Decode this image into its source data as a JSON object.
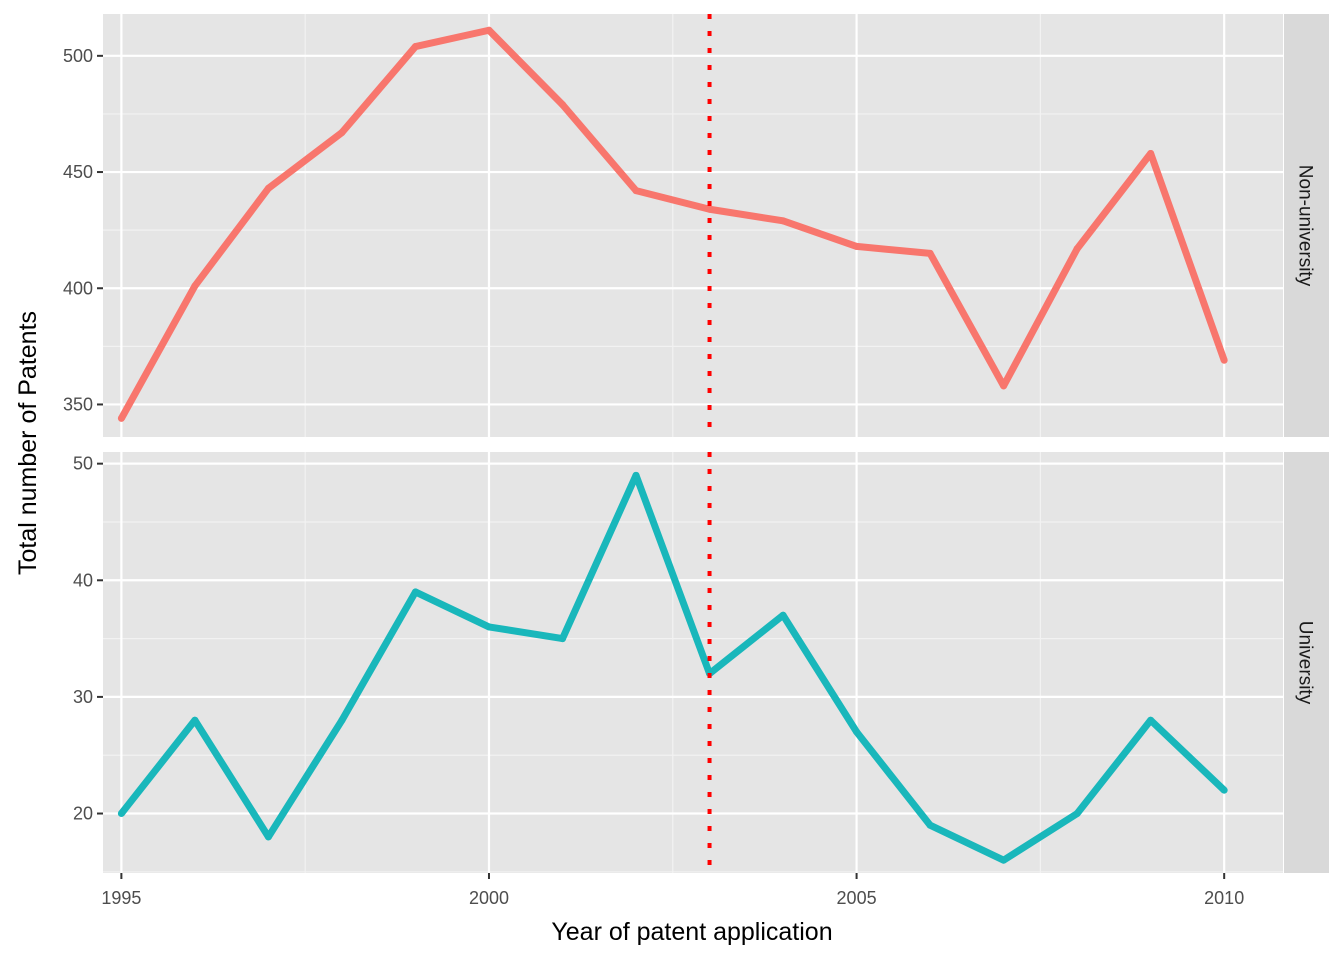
{
  "chart_data": {
    "type": "line",
    "xlabel": "Year of patent application",
    "ylabel": "Total number of Patents",
    "x_ticks": [
      "1995",
      "2000",
      "2005",
      "2010"
    ],
    "xlim": [
      1994.75,
      2010.8
    ],
    "vline": {
      "x": 2003,
      "style": "dotted",
      "color": "#ff0000"
    },
    "grid": true,
    "legend": "none",
    "panels": [
      {
        "strip": "Non-university",
        "color": "#f8766d",
        "ylim": [
          336,
          518
        ],
        "y_ticks": [
          "350",
          "400",
          "450",
          "500"
        ],
        "series": [
          {
            "x": [
              1995,
              1996,
              1997,
              1998,
              1999,
              2000,
              2001,
              2002,
              2003,
              2004,
              2005,
              2006,
              2007,
              2008,
              2009,
              2010
            ],
            "values": [
              344,
              401,
              443,
              467,
              504,
              511,
              479,
              442,
              434,
              429,
              418,
              415,
              358,
              417,
              458,
              369
            ]
          }
        ]
      },
      {
        "strip": "University",
        "color": "#19b7bb",
        "ylim": [
          14.9,
          51.0
        ],
        "y_ticks": [
          "20",
          "30",
          "40",
          "50"
        ],
        "series": [
          {
            "x": [
              1995,
              1996,
              1997,
              1998,
              1999,
              2000,
              2001,
              2002,
              2003,
              2004,
              2005,
              2006,
              2007,
              2008,
              2009,
              2010
            ],
            "values": [
              20,
              28,
              18,
              28,
              39,
              36,
              35,
              49,
              32,
              37,
              27,
              19,
              16,
              20,
              28,
              22
            ]
          }
        ]
      }
    ]
  }
}
